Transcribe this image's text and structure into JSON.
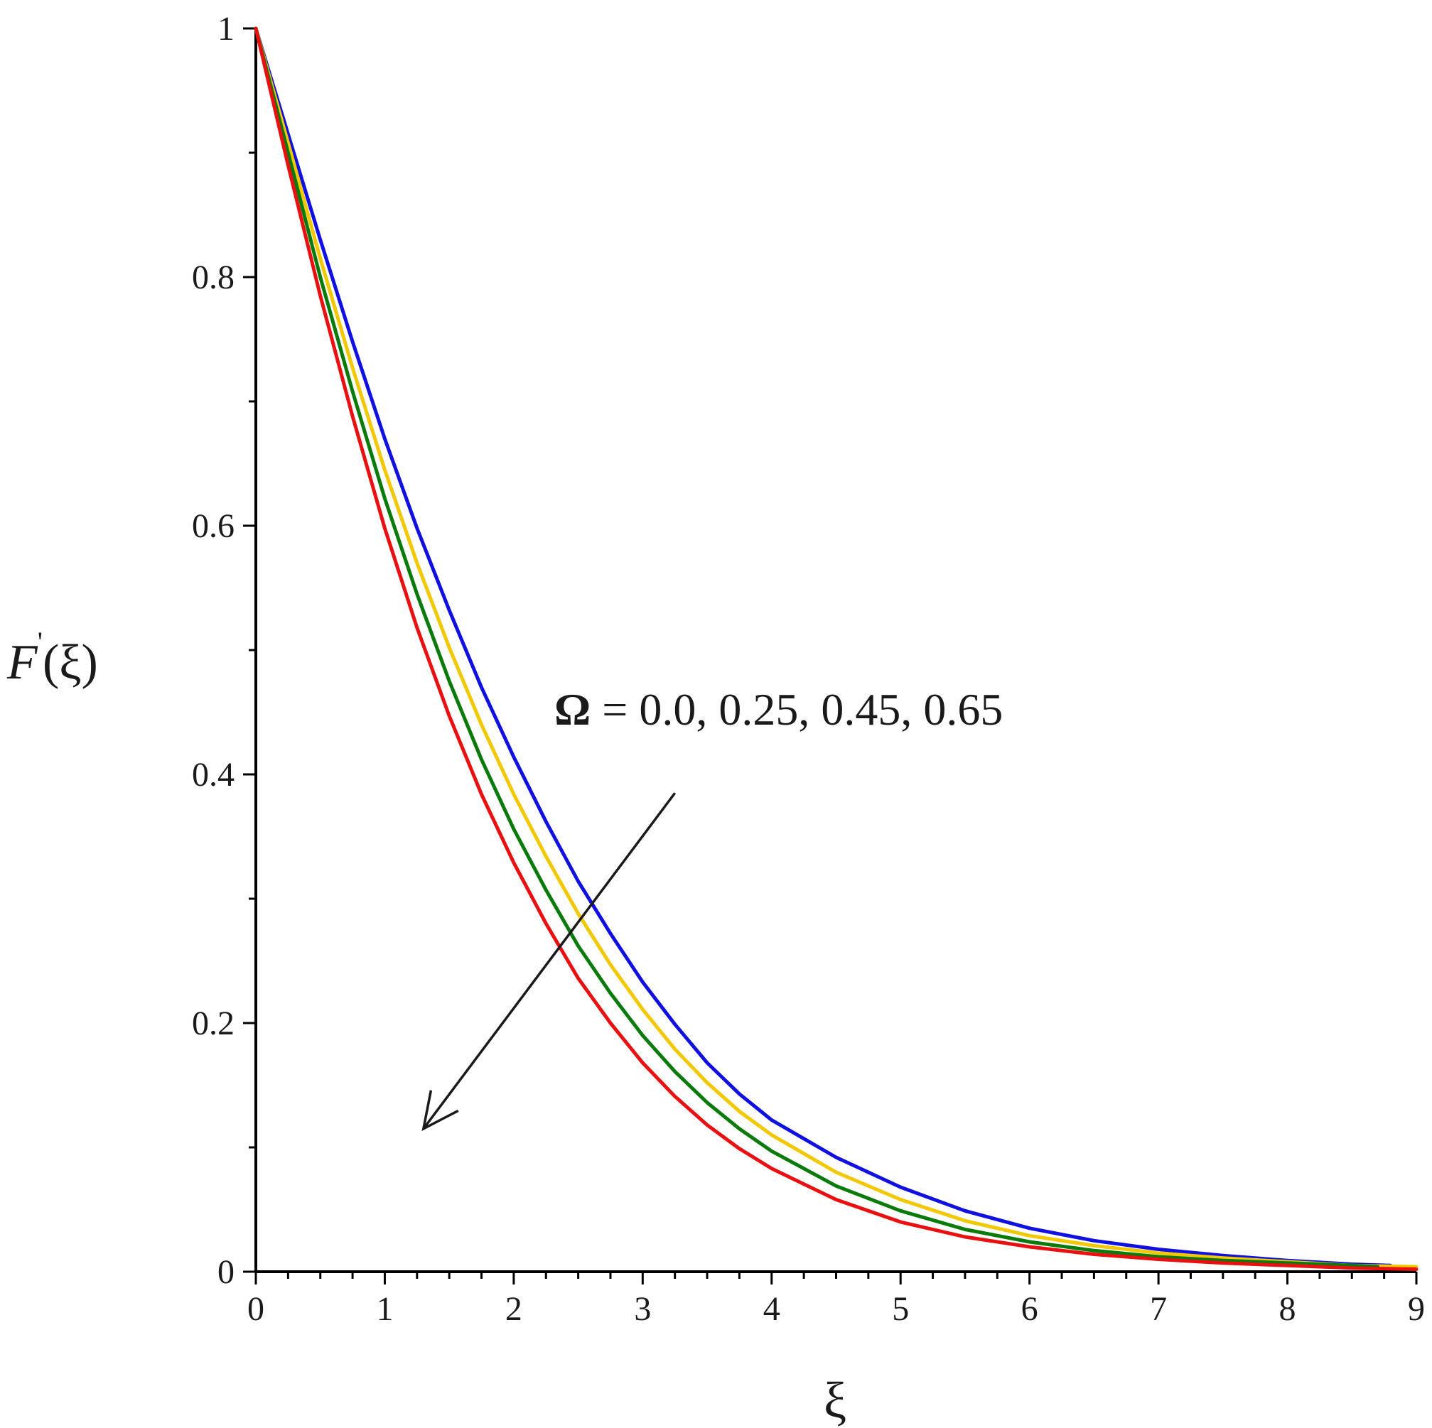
{
  "chart_data": {
    "type": "line",
    "title": "",
    "xlabel": "ξ",
    "ylabel_italic": "F",
    "ylabel_prime": "'",
    "ylabel_arg": "(ξ)",
    "xlim": [
      0,
      9
    ],
    "ylim": [
      0,
      1
    ],
    "x_ticks": [
      "0",
      "1",
      "2",
      "3",
      "4",
      "5",
      "6",
      "7",
      "8",
      "9"
    ],
    "y_ticks": [
      "0",
      "0.2",
      "0.4",
      "0.6",
      "0.8",
      "1"
    ],
    "x_minor_step": 0.25,
    "y_minor_step": 0.1,
    "grid": false,
    "annotation": {
      "symbol": "Ω",
      "text": " = 0.0, 0.25, 0.45, 0.65",
      "arrow_from": [
        3.25,
        0.385
      ],
      "arrow_to": [
        1.3,
        0.115
      ]
    },
    "series": [
      {
        "color": "#1010e0",
        "x": [
          0,
          0.25,
          0.5,
          0.75,
          1,
          1.25,
          1.5,
          1.75,
          2,
          2.25,
          2.5,
          2.75,
          3,
          3.25,
          3.5,
          3.75,
          4,
          4.5,
          5,
          5.5,
          6,
          6.5,
          7,
          7.5,
          8,
          8.5,
          8.8
        ],
        "values": [
          1,
          0.915,
          0.83,
          0.748,
          0.67,
          0.598,
          0.532,
          0.47,
          0.414,
          0.362,
          0.314,
          0.272,
          0.233,
          0.199,
          0.168,
          0.143,
          0.122,
          0.092,
          0.068,
          0.049,
          0.035,
          0.025,
          0.018,
          0.013,
          0.009,
          0.006,
          0.005
        ]
      },
      {
        "color": "#f2c800",
        "x": [
          0,
          0.25,
          0.5,
          0.75,
          1,
          1.25,
          1.5,
          1.75,
          2,
          2.25,
          2.5,
          2.75,
          3,
          3.25,
          3.5,
          3.75,
          4,
          4.5,
          5,
          5.5,
          6,
          6.5,
          7,
          7.5,
          8,
          8.5,
          9
        ],
        "values": [
          1,
          0.908,
          0.815,
          0.727,
          0.645,
          0.57,
          0.502,
          0.44,
          0.384,
          0.334,
          0.288,
          0.247,
          0.211,
          0.179,
          0.152,
          0.129,
          0.11,
          0.08,
          0.058,
          0.041,
          0.029,
          0.021,
          0.015,
          0.011,
          0.008,
          0.005,
          0.004
        ]
      },
      {
        "color": "#0a7a0a",
        "x": [
          0,
          0.25,
          0.5,
          0.75,
          1,
          1.25,
          1.5,
          1.75,
          2,
          2.25,
          2.5,
          2.75,
          3,
          3.25,
          3.5,
          3.75,
          4,
          4.5,
          5,
          5.5,
          6,
          6.5,
          7,
          7.5,
          8,
          8.5,
          8.7
        ],
        "values": [
          1,
          0.9,
          0.8,
          0.708,
          0.622,
          0.545,
          0.475,
          0.412,
          0.356,
          0.307,
          0.262,
          0.224,
          0.19,
          0.161,
          0.136,
          0.115,
          0.097,
          0.069,
          0.049,
          0.034,
          0.024,
          0.017,
          0.012,
          0.009,
          0.007,
          0.005,
          0.004
        ]
      },
      {
        "color": "#e81010",
        "x": [
          0,
          0.25,
          0.5,
          0.75,
          1,
          1.25,
          1.5,
          1.75,
          2,
          2.25,
          2.5,
          2.75,
          3,
          3.25,
          3.5,
          3.75,
          4,
          4.5,
          5,
          5.5,
          6,
          6.5,
          7,
          7.5,
          8,
          8.5,
          9
        ],
        "values": [
          1,
          0.89,
          0.785,
          0.688,
          0.598,
          0.518,
          0.447,
          0.384,
          0.329,
          0.28,
          0.236,
          0.2,
          0.168,
          0.141,
          0.118,
          0.099,
          0.083,
          0.058,
          0.04,
          0.028,
          0.02,
          0.014,
          0.01,
          0.007,
          0.005,
          0.003,
          0.002
        ]
      }
    ]
  }
}
